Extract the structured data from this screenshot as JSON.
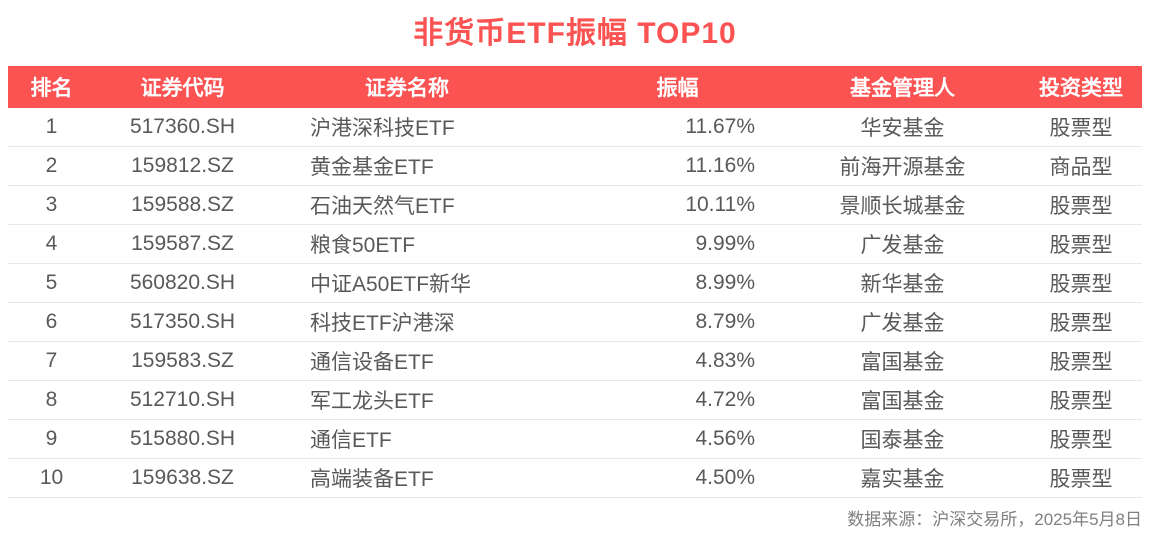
{
  "title": "非货币ETF振幅 TOP10",
  "footer": {
    "source": "数据来源：沪深交易所，2025年5月8日"
  },
  "colors": {
    "accent_red": "#fb5252",
    "header_text": "#ffffff",
    "body_text": "#595959",
    "footer_text": "#808080",
    "row_border": "#e8e8e8",
    "background": "#ffffff"
  },
  "chart_data": {
    "type": "table",
    "title": "非货币ETF振幅 TOP10",
    "columns": [
      "排名",
      "证券代码",
      "证券名称",
      "振幅",
      "基金管理人",
      "投资类型"
    ],
    "rows": [
      [
        "1",
        "517360.SH",
        "沪港深科技ETF",
        "11.67%",
        "华安基金",
        "股票型"
      ],
      [
        "2",
        "159812.SZ",
        "黄金基金ETF",
        "11.16%",
        "前海开源基金",
        "商品型"
      ],
      [
        "3",
        "159588.SZ",
        "石油天然气ETF",
        "10.11%",
        "景顺长城基金",
        "股票型"
      ],
      [
        "4",
        "159587.SZ",
        "粮食50ETF",
        "9.99%",
        "广发基金",
        "股票型"
      ],
      [
        "5",
        "560820.SH",
        "中证A50ETF新华",
        "8.99%",
        "新华基金",
        "股票型"
      ],
      [
        "6",
        "517350.SH",
        "科技ETF沪港深",
        "8.79%",
        "广发基金",
        "股票型"
      ],
      [
        "7",
        "159583.SZ",
        "通信设备ETF",
        "4.83%",
        "富国基金",
        "股票型"
      ],
      [
        "8",
        "512710.SH",
        "军工龙头ETF",
        "4.72%",
        "富国基金",
        "股票型"
      ],
      [
        "9",
        "515880.SH",
        "通信ETF",
        "4.56%",
        "国泰基金",
        "股票型"
      ],
      [
        "10",
        "159638.SZ",
        "高端装备ETF",
        "4.50%",
        "嘉实基金",
        "股票型"
      ]
    ],
    "amplitude_values_pct": [
      11.67,
      11.16,
      10.11,
      9.99,
      8.99,
      8.79,
      4.83,
      4.72,
      4.56,
      4.5
    ],
    "source_note": "数据来源：沪深交易所，2025年5月8日"
  }
}
